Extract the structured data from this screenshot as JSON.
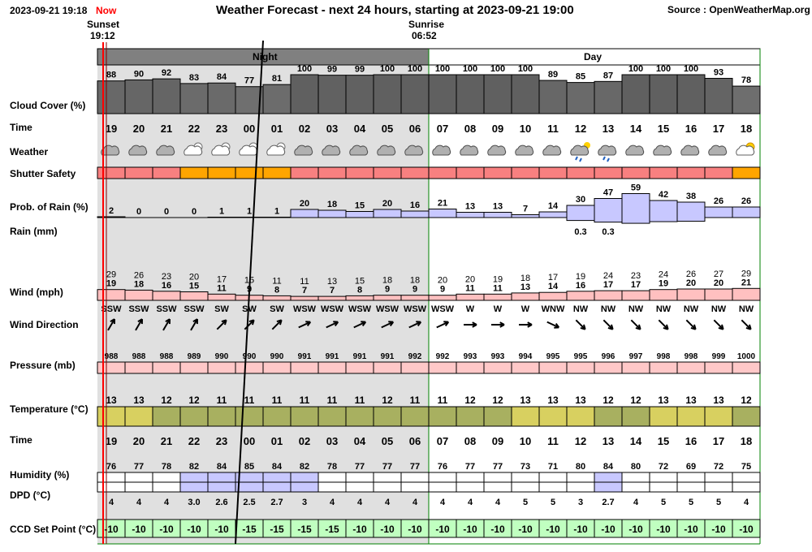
{
  "header": {
    "datetime": "2023-09-21 19:18",
    "now_label": "Now",
    "title": "Weather Forecast - next 24 hours, starting at 2023-09-21 19:00",
    "source": "Source : OpenWeatherMap.org"
  },
  "sun": {
    "sunset_label": "Sunset",
    "sunset_time": "19:12",
    "sunrise_label": "Sunrise",
    "sunrise_time": "06:52"
  },
  "bands": {
    "night": "Night",
    "day": "Day"
  },
  "colors": {
    "night_band": "#808080",
    "night_bg": "#e0e0e0",
    "green_border": "#008000",
    "now_line": "#ff0000",
    "shutter_unsafe": "#f88080",
    "shutter_caution": "#ffa500",
    "rain_prob_fill": "#c8c8ff",
    "wind_fill": "#ffc0c0",
    "pressure_fill": "#ffc8c8",
    "humidity_fill": "#c8c8ff",
    "ccd_fill": "#c0ffc0",
    "temp_light": "#d8d060",
    "temp_dark": "#a8b060"
  },
  "row_labels": {
    "cloud": "Cloud Cover (%)",
    "time": "Time",
    "weather": "Weather",
    "shutter": "Shutter Safety",
    "rain_prob": "Prob. of Rain (%)",
    "rain": "Rain (mm)",
    "wind": "Wind (mph)",
    "wind_dir": "Wind Direction",
    "pressure": "Pressure (mb)",
    "temperature": "Temperature (°C)",
    "time2": "Time",
    "humidity": "Humidity (%)",
    "dpd": "DPD (°C)",
    "ccd": "CCD Set Point (°C)"
  },
  "chart_data": {
    "type": "table",
    "hours": [
      "19",
      "20",
      "21",
      "22",
      "23",
      "00",
      "01",
      "02",
      "03",
      "04",
      "05",
      "06",
      "07",
      "08",
      "09",
      "10",
      "11",
      "12",
      "13",
      "14",
      "15",
      "16",
      "17",
      "18"
    ],
    "cloud_cover": [
      88,
      90,
      92,
      83,
      84,
      77,
      81,
      100,
      99,
      99,
      100,
      100,
      100,
      100,
      100,
      100,
      89,
      85,
      87,
      100,
      100,
      100,
      93,
      78
    ],
    "weather_icons": [
      "cloud-icon",
      "cloud-icon",
      "cloud-icon",
      "partly-cloudy-night-icon",
      "partly-cloudy-night-icon",
      "partly-cloudy-night-icon",
      "partly-cloudy-night-icon",
      "cloud-icon",
      "cloud-icon",
      "cloud-icon",
      "cloud-icon",
      "cloud-icon",
      "cloud-icon",
      "cloud-icon",
      "cloud-icon",
      "cloud-icon",
      "cloud-icon",
      "rain-sun-icon",
      "rain-icon",
      "cloud-icon",
      "cloud-icon",
      "cloud-icon",
      "cloud-icon",
      "partly-cloudy-day-icon"
    ],
    "shutter_safety": [
      "unsafe",
      "unsafe",
      "unsafe",
      "caution",
      "caution",
      "caution",
      "caution",
      "unsafe",
      "unsafe",
      "unsafe",
      "unsafe",
      "unsafe",
      "unsafe",
      "unsafe",
      "unsafe",
      "unsafe",
      "unsafe",
      "unsafe",
      "unsafe",
      "unsafe",
      "unsafe",
      "unsafe",
      "unsafe",
      "caution"
    ],
    "rain_probability": [
      2,
      0,
      0,
      0,
      1,
      1,
      1,
      20,
      18,
      15,
      20,
      16,
      21,
      13,
      13,
      7,
      14,
      30,
      47,
      59,
      42,
      38,
      26,
      26
    ],
    "rain_mm": [
      "",
      "",
      "",
      "",
      "",
      "",
      "",
      "",
      "",
      "",
      "",
      "",
      "",
      "",
      "",
      "",
      "",
      "0.3",
      "0.3",
      "",
      "",
      "",
      "",
      ""
    ],
    "wind_gust": [
      29,
      26,
      23,
      20,
      17,
      15,
      11,
      11,
      13,
      15,
      18,
      18,
      20,
      20,
      19,
      18,
      17,
      19,
      24,
      23,
      24,
      26,
      27,
      29
    ],
    "wind_speed": [
      19,
      18,
      16,
      15,
      11,
      9,
      8,
      7,
      7,
      8,
      9,
      9,
      9,
      11,
      11,
      13,
      14,
      16,
      17,
      17,
      19,
      20,
      20,
      21
    ],
    "wind_direction": [
      "SSW",
      "SSW",
      "SSW",
      "SSW",
      "SW",
      "SW",
      "SW",
      "WSW",
      "WSW",
      "WSW",
      "WSW",
      "WSW",
      "WSW",
      "W",
      "W",
      "W",
      "WNW",
      "NW",
      "NW",
      "NW",
      "NW",
      "NW",
      "NW",
      "NW"
    ],
    "pressure": [
      988,
      988,
      988,
      989,
      990,
      990,
      990,
      991,
      991,
      991,
      991,
      992,
      992,
      993,
      993,
      994,
      995,
      995,
      996,
      997,
      998,
      998,
      999,
      1000
    ],
    "temperature": [
      13,
      13,
      12,
      12,
      11,
      11,
      11,
      11,
      11,
      11,
      12,
      11,
      11,
      12,
      12,
      13,
      13,
      13,
      12,
      12,
      13,
      13,
      13,
      12
    ],
    "humidity": [
      76,
      77,
      78,
      82,
      84,
      85,
      84,
      82,
      78,
      77,
      77,
      77,
      76,
      77,
      77,
      73,
      71,
      80,
      84,
      80,
      72,
      69,
      72,
      75
    ],
    "dpd": [
      "4",
      "4",
      "4",
      "3.0",
      "2.6",
      "2.5",
      "2.7",
      "3",
      "4",
      "4",
      "4",
      "4",
      "4",
      "4",
      "4",
      "5",
      "5",
      "3",
      "2.7",
      "4",
      "5",
      "5",
      "5",
      "4"
    ],
    "ccd_set_point": [
      -10,
      -10,
      -10,
      -10,
      -10,
      -15,
      -15,
      -15,
      -15,
      -10,
      -10,
      -10,
      -10,
      -10,
      -10,
      -10,
      -10,
      -10,
      -10,
      -10,
      -10,
      -10,
      -10,
      -10
    ]
  }
}
